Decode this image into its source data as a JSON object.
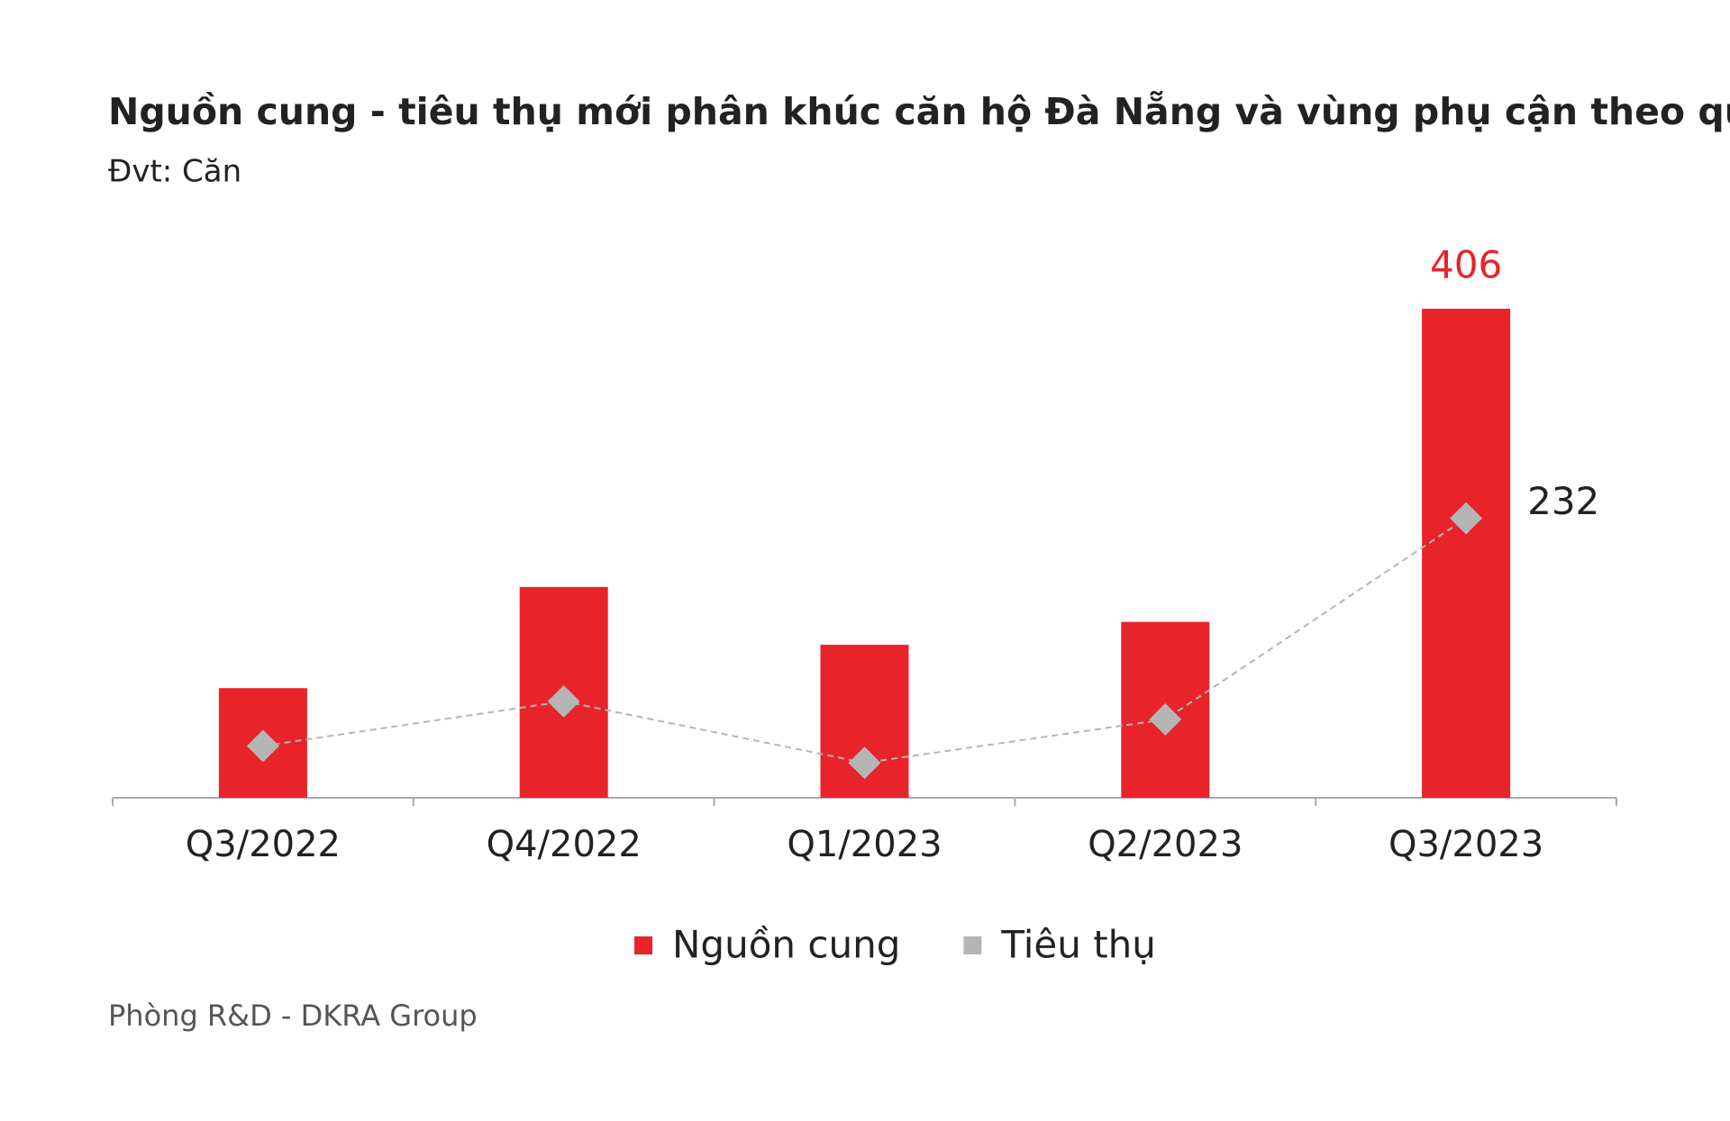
{
  "chart_data": {
    "type": "bar",
    "title": "Nguồn cung - tiêu thụ mới phân khúc căn hộ Đà Nẵng và vùng phụ cận theo quý",
    "subtitle": "Đvt: Căn",
    "source": "Phòng R&D - DKRA Group",
    "categories": [
      "Q3/2022",
      "Q4/2022",
      "Q1/2023",
      "Q2/2023",
      "Q3/2023"
    ],
    "series": [
      {
        "name": "Nguồn cung",
        "type": "bar",
        "color": "#e8232a",
        "values": [
          91,
          175,
          127,
          146,
          406
        ],
        "label_last": true
      },
      {
        "name": "Tiêu thụ",
        "type": "line",
        "color": "#b5b5b5",
        "values": [
          43,
          80,
          29,
          65,
          232
        ],
        "label_last": true
      }
    ],
    "ylim": [
      0,
      450
    ],
    "legend": "bottom"
  }
}
